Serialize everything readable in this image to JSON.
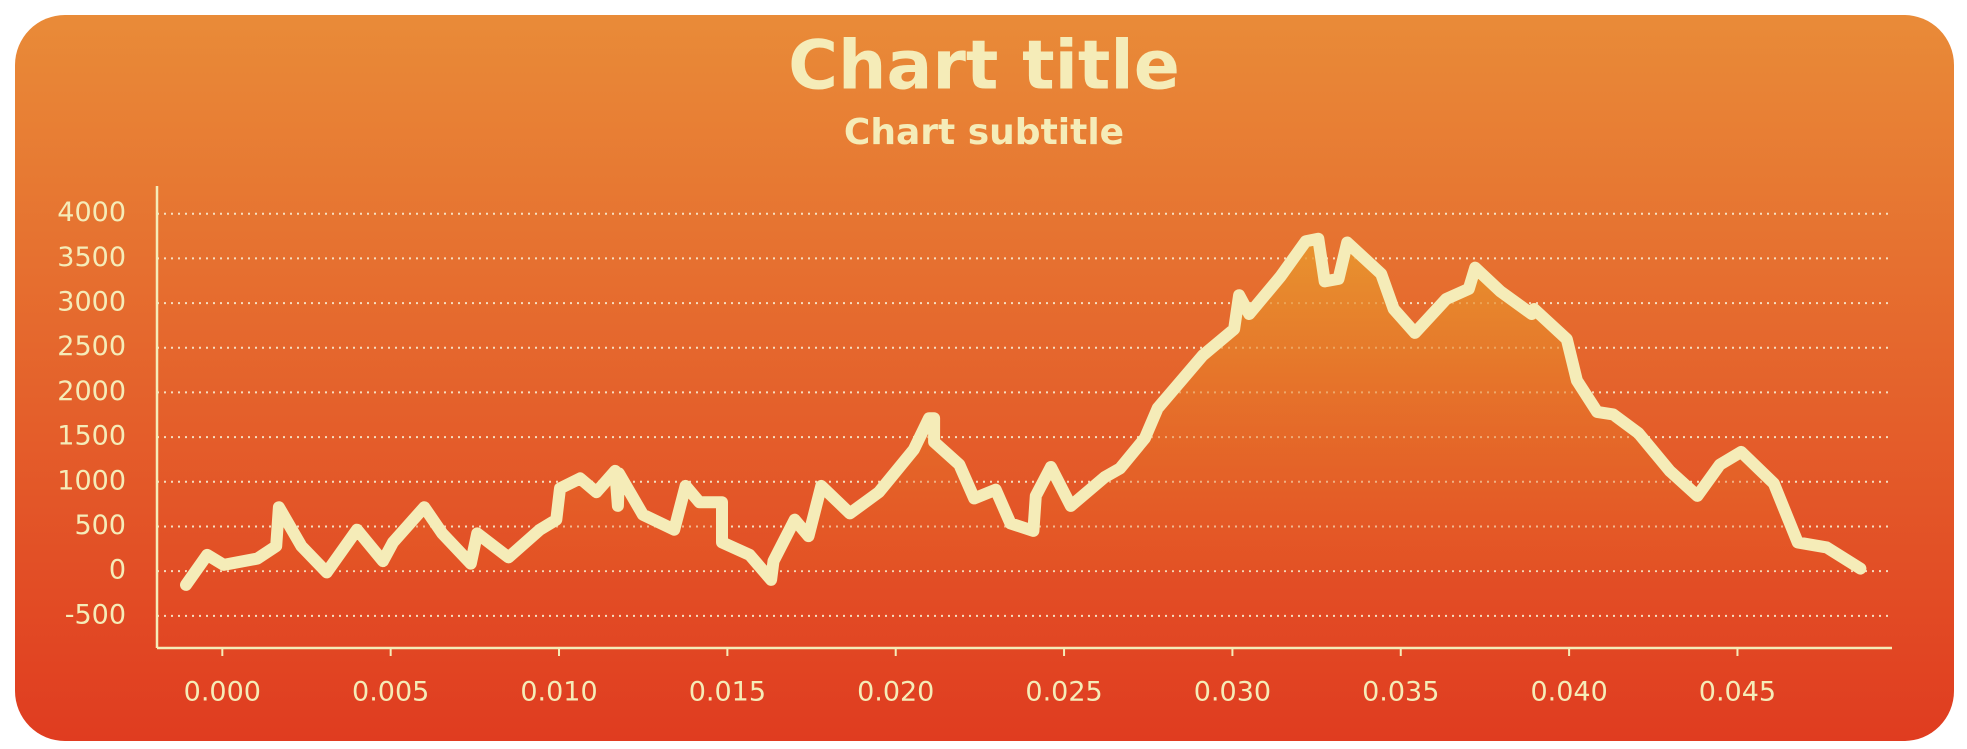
{
  "chart_data": {
    "type": "line",
    "title": "Chart title",
    "subtitle": "Chart subtitle",
    "series": [
      {
        "color": "#f5ecb8",
        "x": [
          -0.00108,
          -0.00045,
          4e-05,
          0.00104,
          0.0016,
          0.00168,
          0.00235,
          0.0031,
          0.004,
          0.00477,
          0.00507,
          0.006,
          0.00653,
          0.00738,
          0.00757,
          0.0085,
          0.00943,
          0.00992,
          0.01003,
          0.01063,
          0.01111,
          0.01167,
          0.01175,
          0.01178,
          0.01249,
          0.01342,
          0.01376,
          0.01417,
          0.01484,
          0.01484,
          0.01566,
          0.0163,
          0.01637,
          0.017,
          0.01741,
          0.01779,
          0.01864,
          0.0195,
          0.02054,
          0.02099,
          0.02114,
          0.02114,
          0.02189,
          0.02233,
          0.02297,
          0.02341,
          0.02409,
          0.02416,
          0.02461,
          0.0252,
          0.02621,
          0.02666,
          0.0274,
          0.02778,
          0.02912,
          0.03005,
          0.0302,
          0.0305,
          0.03143,
          0.03218,
          0.03255,
          0.03274,
          0.03315,
          0.03341,
          0.03442,
          0.03479,
          0.03542,
          0.03635,
          0.03702,
          0.03721,
          0.03796,
          0.03889,
          0.03896,
          0.03993,
          0.04023,
          0.04083,
          0.04131,
          0.04206,
          0.04299,
          0.04381,
          0.04448,
          0.04511,
          0.04608,
          0.04679,
          0.04765,
          0.04865
        ],
        "values": [
          -154,
          182,
          70,
          140,
          280,
          716,
          280,
          -14,
          464,
          112,
          322,
          716,
          422,
          84,
          422,
          154,
          464,
          576,
          926,
          1038,
          884,
          1122,
          730,
          1094,
          632,
          464,
          954,
          772,
          772,
          322,
          182,
          -98,
          112,
          576,
          392,
          954,
          646,
          884,
          1362,
          1712,
          1712,
          1446,
          1192,
          814,
          912,
          534,
          450,
          842,
          1166,
          730,
          1052,
          1150,
          1488,
          1824,
          2414,
          2708,
          3088,
          2878,
          3298,
          3692,
          3720,
          3242,
          3270,
          3678,
          3326,
          2934,
          2666,
          3046,
          3158,
          3396,
          3130,
          2878,
          2934,
          2596,
          2134,
          1782,
          1754,
          1544,
          1122,
          842,
          1192,
          1334,
          982,
          322,
          266,
          28
        ]
      }
    ],
    "xlim": [
      -0.00194,
      0.04959
    ],
    "ylim": [
      -860,
      4310
    ],
    "xticks": [
      {
        "value": 0,
        "label": "0.000"
      },
      {
        "value": 0.005,
        "label": "0.005"
      },
      {
        "value": 0.01,
        "label": "0.010"
      },
      {
        "value": 0.015,
        "label": "0.015"
      },
      {
        "value": 0.02,
        "label": "0.020"
      },
      {
        "value": 0.025,
        "label": "0.025"
      },
      {
        "value": 0.03,
        "label": "0.030"
      },
      {
        "value": 0.035,
        "label": "0.035"
      },
      {
        "value": 0.04,
        "label": "0.040"
      },
      {
        "value": 0.045,
        "label": "0.045"
      }
    ],
    "yticks": [
      -500,
      0,
      500,
      1000,
      1500,
      2000,
      2500,
      3000,
      3500,
      4000
    ],
    "grid": true
  }
}
